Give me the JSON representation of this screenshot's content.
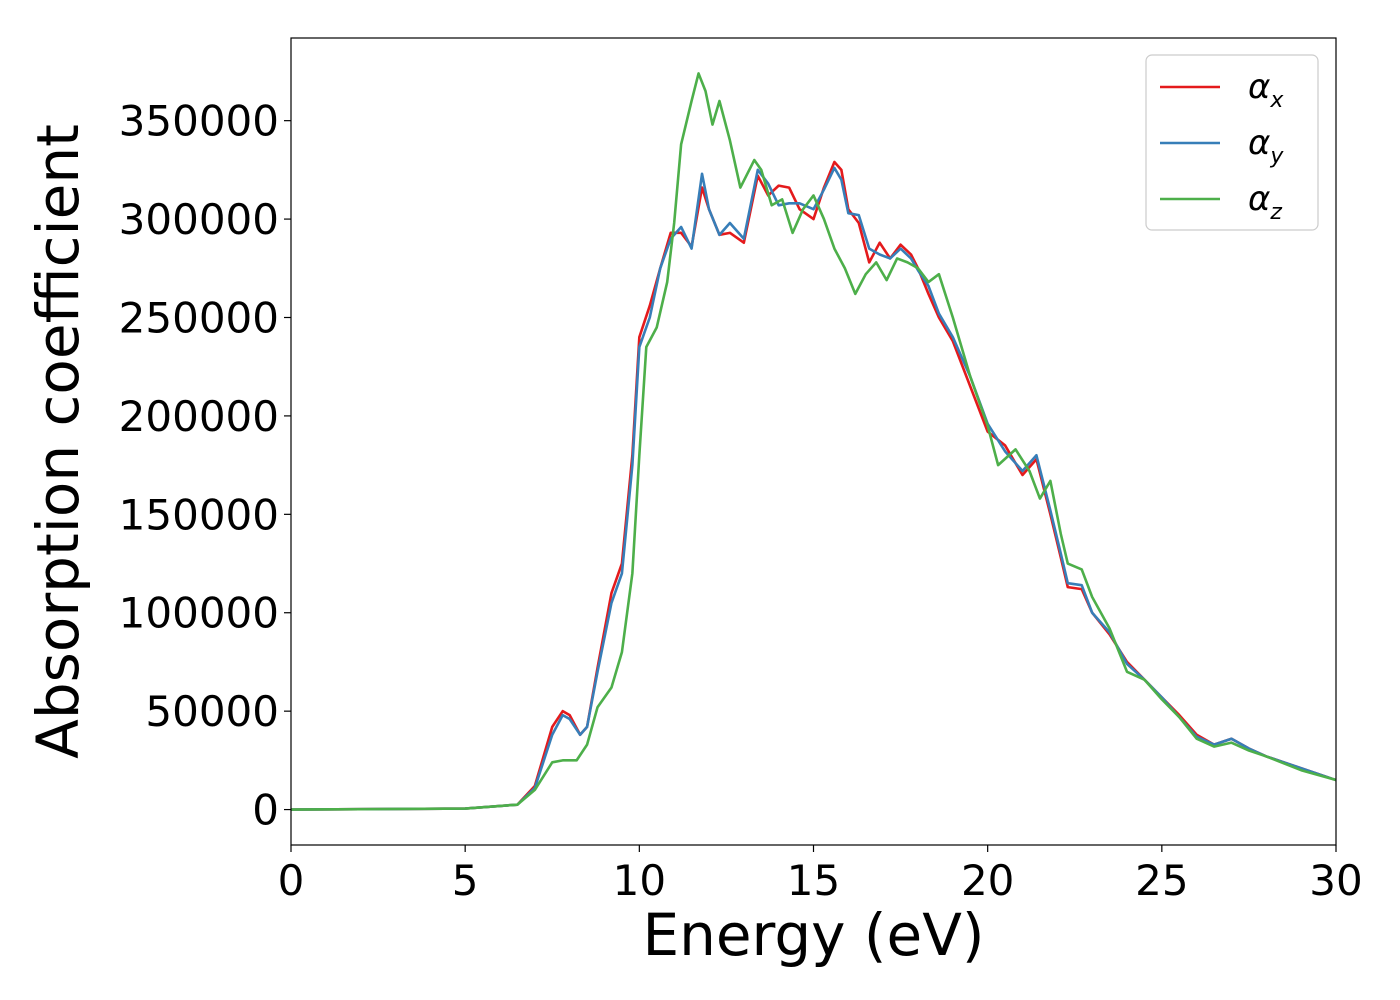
{
  "chart_data": {
    "type": "line",
    "xlabel": "Energy (eV)",
    "ylabel": "Absorption coefficient",
    "xlim": [
      0,
      30
    ],
    "ylim": [
      -18000,
      392000
    ],
    "xticks": [
      0,
      5,
      10,
      15,
      20,
      25,
      30
    ],
    "xtick_labels": [
      "0",
      "5",
      "10",
      "15",
      "20",
      "25",
      "30"
    ],
    "yticks": [
      0,
      50000,
      100000,
      150000,
      200000,
      250000,
      300000,
      350000
    ],
    "ytick_labels": [
      "0",
      "50000",
      "100000",
      "150000",
      "200000",
      "250000",
      "300000",
      "350000"
    ],
    "grid": false,
    "legend_position": "top-right",
    "series": [
      {
        "name": "α",
        "subscript": "x",
        "color": "#e41a1c",
        "points": [
          [
            0,
            0
          ],
          [
            5,
            500
          ],
          [
            6.5,
            2500
          ],
          [
            7,
            12000
          ],
          [
            7.5,
            42000
          ],
          [
            7.8,
            50000
          ],
          [
            8,
            48000
          ],
          [
            8.3,
            38000
          ],
          [
            8.5,
            42000
          ],
          [
            8.8,
            72000
          ],
          [
            9.2,
            110000
          ],
          [
            9.5,
            125000
          ],
          [
            9.8,
            180000
          ],
          [
            10,
            240000
          ],
          [
            10.3,
            256000
          ],
          [
            10.6,
            275000
          ],
          [
            10.9,
            293000
          ],
          [
            11.2,
            293000
          ],
          [
            11.5,
            286000
          ],
          [
            11.8,
            316000
          ],
          [
            12,
            305000
          ],
          [
            12.3,
            292000
          ],
          [
            12.6,
            293000
          ],
          [
            13,
            288000
          ],
          [
            13.4,
            322000
          ],
          [
            13.7,
            312000
          ],
          [
            14,
            317000
          ],
          [
            14.3,
            316000
          ],
          [
            14.6,
            305000
          ],
          [
            15,
            300000
          ],
          [
            15.3,
            316000
          ],
          [
            15.6,
            329000
          ],
          [
            15.8,
            325000
          ],
          [
            16,
            305000
          ],
          [
            16.3,
            298000
          ],
          [
            16.6,
            278000
          ],
          [
            16.9,
            288000
          ],
          [
            17.2,
            280000
          ],
          [
            17.5,
            287000
          ],
          [
            17.8,
            282000
          ],
          [
            18,
            275000
          ],
          [
            18.3,
            262000
          ],
          [
            18.6,
            250000
          ],
          [
            19,
            238000
          ],
          [
            19.5,
            215000
          ],
          [
            20,
            192000
          ],
          [
            20.5,
            185000
          ],
          [
            21,
            170000
          ],
          [
            21.4,
            178000
          ],
          [
            21.8,
            150000
          ],
          [
            22.1,
            128000
          ],
          [
            22.3,
            113000
          ],
          [
            22.7,
            112000
          ],
          [
            23,
            100000
          ],
          [
            23.5,
            89000
          ],
          [
            24,
            75000
          ],
          [
            24.5,
            66000
          ],
          [
            25,
            57000
          ],
          [
            25.5,
            48000
          ],
          [
            26,
            38000
          ],
          [
            26.5,
            33000
          ],
          [
            27,
            36000
          ],
          [
            27.5,
            31000
          ],
          [
            28,
            27000
          ],
          [
            29,
            21000
          ],
          [
            30,
            15000
          ]
        ]
      },
      {
        "name": "α",
        "subscript": "y",
        "color": "#377eb8",
        "points": [
          [
            0,
            0
          ],
          [
            5,
            500
          ],
          [
            6.5,
            2500
          ],
          [
            7,
            11000
          ],
          [
            7.5,
            38000
          ],
          [
            7.8,
            48000
          ],
          [
            8,
            46000
          ],
          [
            8.3,
            38000
          ],
          [
            8.5,
            42000
          ],
          [
            8.8,
            70000
          ],
          [
            9.2,
            105000
          ],
          [
            9.5,
            120000
          ],
          [
            9.8,
            175000
          ],
          [
            10,
            235000
          ],
          [
            10.3,
            250000
          ],
          [
            10.6,
            275000
          ],
          [
            10.9,
            290000
          ],
          [
            11.2,
            296000
          ],
          [
            11.5,
            285000
          ],
          [
            11.8,
            323000
          ],
          [
            12,
            305000
          ],
          [
            12.3,
            292000
          ],
          [
            12.6,
            298000
          ],
          [
            13,
            290000
          ],
          [
            13.4,
            325000
          ],
          [
            13.7,
            318000
          ],
          [
            14,
            307000
          ],
          [
            14.3,
            308000
          ],
          [
            14.6,
            308000
          ],
          [
            15,
            305000
          ],
          [
            15.3,
            315000
          ],
          [
            15.6,
            326000
          ],
          [
            15.8,
            320000
          ],
          [
            16,
            303000
          ],
          [
            16.3,
            302000
          ],
          [
            16.6,
            285000
          ],
          [
            16.9,
            282000
          ],
          [
            17.2,
            280000
          ],
          [
            17.5,
            285000
          ],
          [
            17.8,
            280000
          ],
          [
            18,
            274000
          ],
          [
            18.3,
            266000
          ],
          [
            18.6,
            252000
          ],
          [
            19,
            240000
          ],
          [
            19.5,
            220000
          ],
          [
            20,
            196000
          ],
          [
            20.5,
            182000
          ],
          [
            21,
            172000
          ],
          [
            21.4,
            180000
          ],
          [
            21.8,
            152000
          ],
          [
            22.1,
            130000
          ],
          [
            22.3,
            115000
          ],
          [
            22.7,
            114000
          ],
          [
            23,
            100000
          ],
          [
            23.5,
            90000
          ],
          [
            24,
            74000
          ],
          [
            24.5,
            66000
          ],
          [
            25,
            57000
          ],
          [
            25.5,
            47000
          ],
          [
            26,
            37000
          ],
          [
            26.5,
            33000
          ],
          [
            27,
            36000
          ],
          [
            27.5,
            31000
          ],
          [
            28,
            27000
          ],
          [
            29,
            21000
          ],
          [
            30,
            15000
          ]
        ]
      },
      {
        "name": "α",
        "subscript": "z",
        "color": "#4daf4a",
        "points": [
          [
            0,
            0
          ],
          [
            5,
            500
          ],
          [
            6.5,
            2500
          ],
          [
            7,
            10000
          ],
          [
            7.5,
            24000
          ],
          [
            7.8,
            25000
          ],
          [
            8.2,
            25000
          ],
          [
            8.5,
            33000
          ],
          [
            8.8,
            52000
          ],
          [
            9.2,
            62000
          ],
          [
            9.5,
            80000
          ],
          [
            9.8,
            120000
          ],
          [
            10,
            180000
          ],
          [
            10.2,
            235000
          ],
          [
            10.5,
            245000
          ],
          [
            10.8,
            268000
          ],
          [
            11,
            298000
          ],
          [
            11.2,
            338000
          ],
          [
            11.5,
            360000
          ],
          [
            11.7,
            374000
          ],
          [
            11.9,
            365000
          ],
          [
            12.1,
            348000
          ],
          [
            12.3,
            360000
          ],
          [
            12.6,
            340000
          ],
          [
            12.9,
            316000
          ],
          [
            13.3,
            330000
          ],
          [
            13.5,
            325000
          ],
          [
            13.8,
            307000
          ],
          [
            14.1,
            310000
          ],
          [
            14.4,
            293000
          ],
          [
            14.7,
            305000
          ],
          [
            15,
            312000
          ],
          [
            15.3,
            300000
          ],
          [
            15.6,
            285000
          ],
          [
            15.9,
            275000
          ],
          [
            16.2,
            262000
          ],
          [
            16.5,
            272000
          ],
          [
            16.8,
            278000
          ],
          [
            17.1,
            269000
          ],
          [
            17.4,
            280000
          ],
          [
            17.7,
            278000
          ],
          [
            18,
            275000
          ],
          [
            18.3,
            268000
          ],
          [
            18.6,
            272000
          ],
          [
            19,
            250000
          ],
          [
            19.5,
            220000
          ],
          [
            20,
            195000
          ],
          [
            20.3,
            175000
          ],
          [
            20.8,
            183000
          ],
          [
            21.2,
            172000
          ],
          [
            21.5,
            158000
          ],
          [
            21.8,
            167000
          ],
          [
            22.1,
            140000
          ],
          [
            22.3,
            125000
          ],
          [
            22.7,
            122000
          ],
          [
            23,
            108000
          ],
          [
            23.5,
            92000
          ],
          [
            24,
            70000
          ],
          [
            24.5,
            66000
          ],
          [
            25,
            56000
          ],
          [
            25.5,
            47000
          ],
          [
            26,
            36000
          ],
          [
            26.5,
            32000
          ],
          [
            27,
            34000
          ],
          [
            27.5,
            30000
          ],
          [
            28,
            27000
          ],
          [
            29,
            20000
          ],
          [
            30,
            15000
          ]
        ]
      }
    ]
  }
}
